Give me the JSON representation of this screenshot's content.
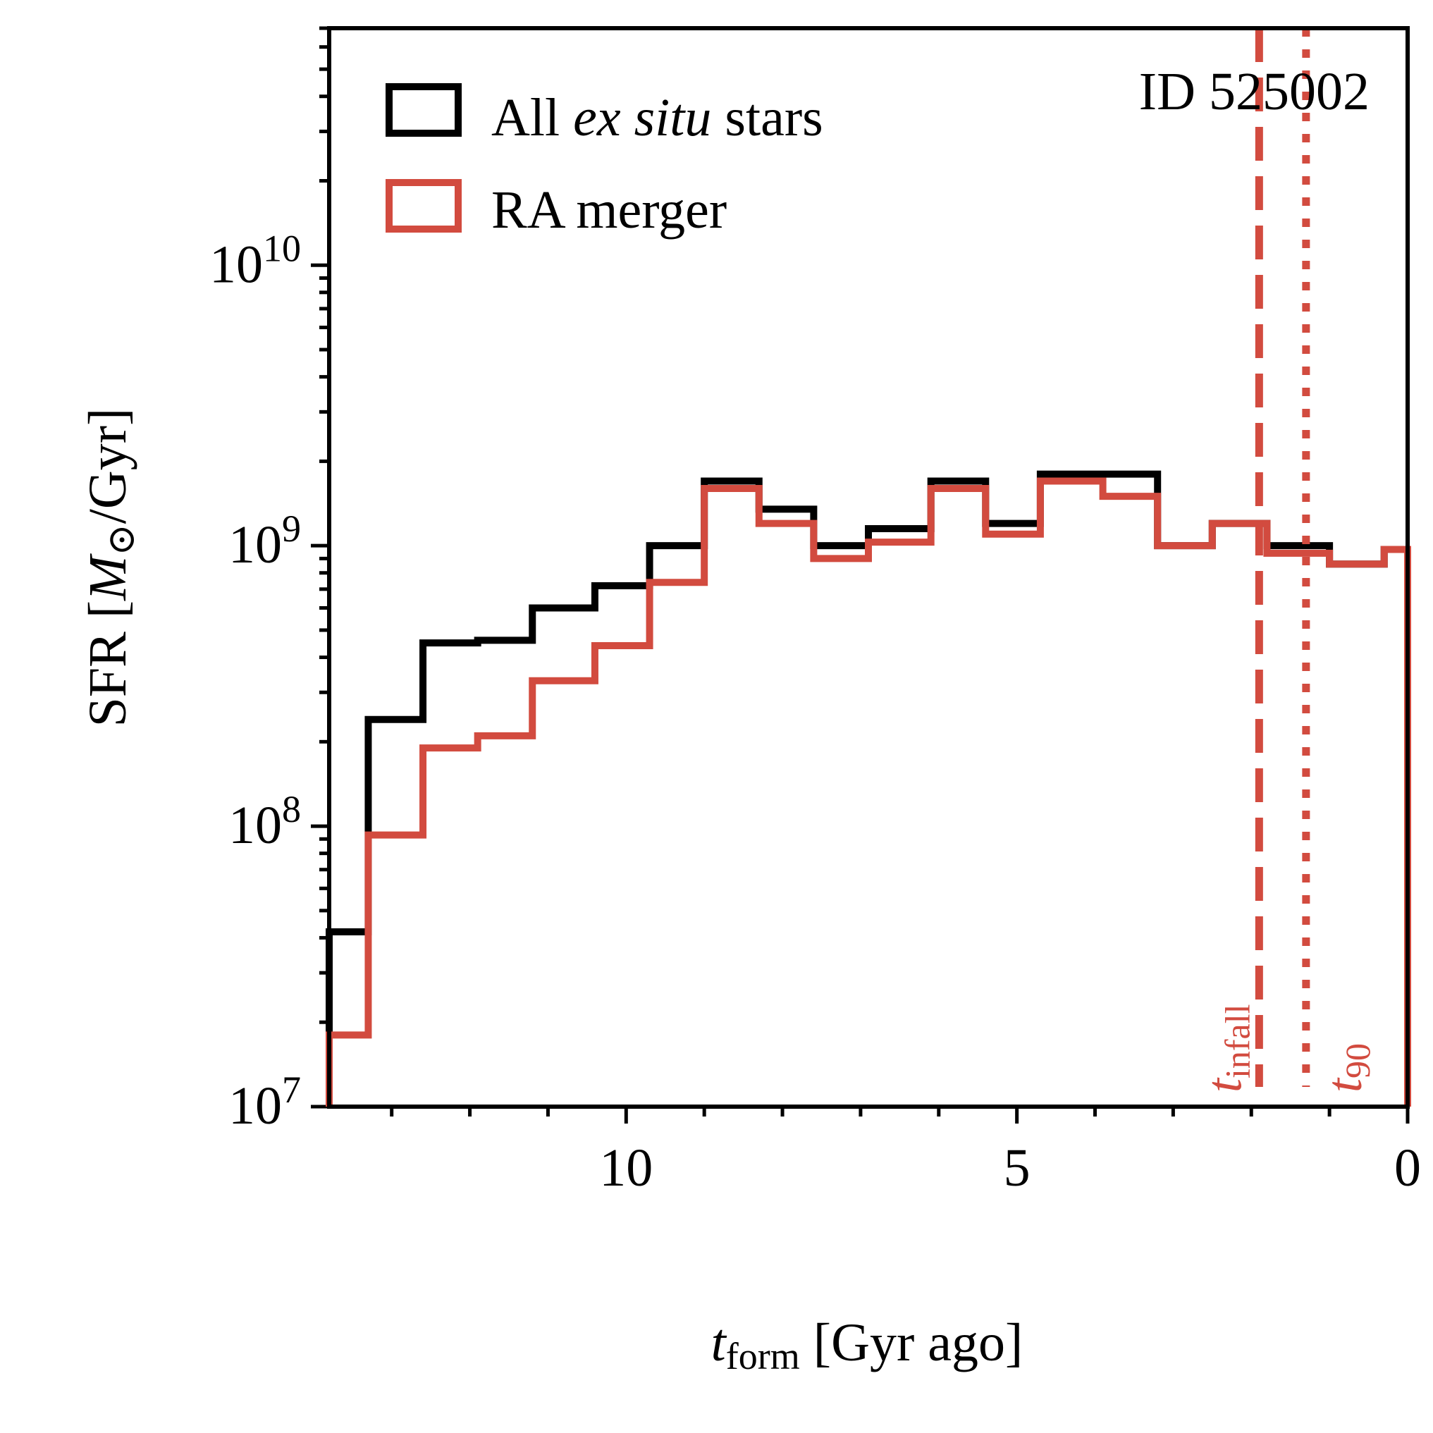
{
  "chart_data": {
    "type": "line",
    "drawstyle": "steps",
    "label": "ID 525002",
    "xlabel": {
      "main": "t",
      "sub": "form",
      "rest": " [Gyr ago]"
    },
    "ylabel": {
      "pre": "SFR [",
      "mass": "M",
      "sun": "⊙",
      "post": "/Gyr]"
    },
    "xlim": [
      13.8,
      0
    ],
    "x_inverted": true,
    "ylim": [
      10000000,
      70000000000
    ],
    "yscale": "log",
    "x_ticks": [
      {
        "value": 10,
        "label": "10"
      },
      {
        "value": 5,
        "label": "5"
      },
      {
        "value": 0,
        "label": "0"
      }
    ],
    "y_ticks": [
      {
        "value": 10000000,
        "base": "10",
        "exp": "7"
      },
      {
        "value": 100000000,
        "base": "10",
        "exp": "8"
      },
      {
        "value": 1000000000,
        "base": "10",
        "exp": "9"
      },
      {
        "value": 10000000000,
        "base": "10",
        "exp": "10"
      }
    ],
    "bin_edges": [
      13.8,
      13.3,
      12.6,
      11.9,
      11.2,
      10.4,
      9.7,
      9.0,
      8.3,
      7.6,
      6.9,
      6.1,
      5.4,
      4.7,
      3.9,
      3.2,
      2.5,
      1.8,
      1.0,
      0.3,
      0
    ],
    "series": [
      {
        "name": "All ex situ stars",
        "name_parts": [
          "All ",
          "ex situ",
          " stars"
        ],
        "color": "#000000",
        "values": [
          42000000.0,
          240000000.0,
          450000000.0,
          460000000.0,
          600000000.0,
          720000000.0,
          1000000000.0,
          1700000000.0,
          1350000000.0,
          1000000000.0,
          1150000000.0,
          1700000000.0,
          1200000000.0,
          1800000000.0,
          1800000000.0,
          1000000000.0,
          1200000000.0,
          1000000000.0,
          860000000.0,
          970000000.0
        ]
      },
      {
        "name": "RA merger",
        "color": "#d24b3f",
        "values": [
          18000000.0,
          93000000.0,
          190000000.0,
          210000000.0,
          330000000.0,
          440000000.0,
          740000000.0,
          1600000000.0,
          1200000000.0,
          900000000.0,
          1030000000.0,
          1600000000.0,
          1100000000.0,
          1700000000.0,
          1500000000.0,
          1000000000.0,
          1200000000.0,
          940000000.0,
          860000000.0,
          970000000.0
        ]
      }
    ],
    "annotations": [
      {
        "name": "t_infall",
        "main": "t",
        "sub": "infall",
        "x": 1.9,
        "style": "dashed",
        "color": "#d24b3f"
      },
      {
        "name": "t_90",
        "main": "t",
        "sub": "90",
        "x": 1.3,
        "style": "dotted",
        "color": "#d24b3f"
      }
    ],
    "grid": false,
    "legend": "top-left"
  }
}
